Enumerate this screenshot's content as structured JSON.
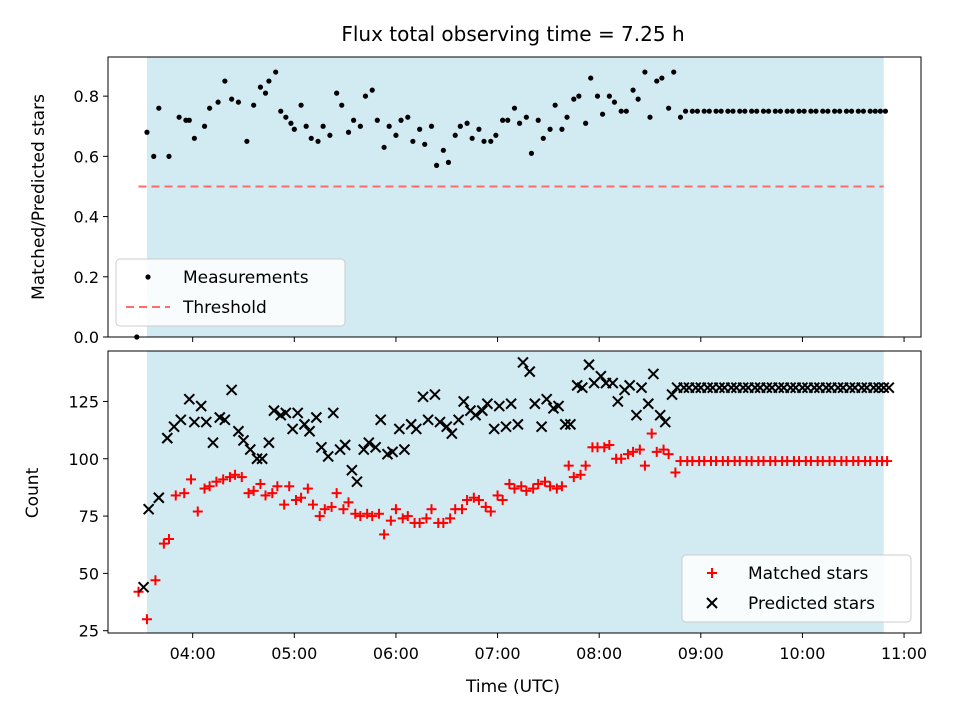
{
  "chart_data": [
    {
      "type": "scatter",
      "title": "Flux total observing time = 7.25 h",
      "xlabel": "",
      "ylabel": "Matched/Predicted stars",
      "ylim": [
        0,
        0.93
      ],
      "xlim": [
        "03:10",
        "11:10"
      ],
      "yticks": [
        "0.0",
        "0.2",
        "0.4",
        "0.6",
        "0.8"
      ],
      "shaded_span": [
        "03:33",
        "10:48"
      ],
      "shade_color": "#add8e6",
      "legend_position": "lower-left",
      "legend": [
        "Measurements",
        "Threshold"
      ],
      "threshold": {
        "name": "Threshold",
        "value": 0.5,
        "x_range": [
          "03:28",
          "10:48"
        ],
        "color": "#ff6b6b"
      },
      "series": [
        {
          "name": "Measurements",
          "marker": "dot",
          "color": "#000000",
          "x": [
            "03:27",
            "03:33",
            "03:37",
            "03:40",
            "03:46",
            "03:52",
            "03:56",
            "03:58",
            "04:01",
            "04:07",
            "04:10",
            "04:15",
            "04:19",
            "04:23",
            "04:27",
            "04:32",
            "04:36",
            "04:40",
            "04:43",
            "04:45",
            "04:49",
            "04:52",
            "04:55",
            "04:58",
            "05:00",
            "05:04",
            "05:07",
            "05:10",
            "05:14",
            "05:17",
            "05:21",
            "05:25",
            "05:28",
            "05:32",
            "05:35",
            "05:39",
            "05:42",
            "05:46",
            "05:49",
            "05:53",
            "05:56",
            "06:00",
            "06:03",
            "06:07",
            "06:10",
            "06:14",
            "06:17",
            "06:21",
            "06:24",
            "06:28",
            "06:31",
            "06:35",
            "06:38",
            "06:42",
            "06:45",
            "06:49",
            "06:52",
            "06:56",
            "06:59",
            "07:03",
            "07:06",
            "07:10",
            "07:13",
            "07:17",
            "07:20",
            "07:24",
            "07:27",
            "07:31",
            "07:34",
            "07:38",
            "07:41",
            "07:45",
            "07:48",
            "07:52",
            "07:55",
            "07:59",
            "08:02",
            "08:06",
            "08:09",
            "08:13",
            "08:16",
            "08:20",
            "08:23",
            "08:27",
            "08:30",
            "08:34",
            "08:37",
            "08:41",
            "08:44",
            "08:48",
            "08:51",
            "08:55",
            "08:58",
            "09:02",
            "09:05",
            "09:09",
            "09:12",
            "09:16",
            "09:19",
            "09:23",
            "09:26",
            "09:30",
            "09:33",
            "09:37",
            "09:40",
            "09:44",
            "09:47",
            "09:51",
            "09:54",
            "09:58",
            "10:01",
            "10:05",
            "10:08",
            "10:12",
            "10:15",
            "10:19",
            "10:22",
            "10:26",
            "10:29",
            "10:33",
            "10:36",
            "10:40",
            "10:43",
            "10:46",
            "10:49"
          ],
          "y": [
            0.0,
            0.68,
            0.6,
            0.76,
            0.6,
            0.73,
            0.72,
            0.72,
            0.66,
            0.7,
            0.76,
            0.78,
            0.85,
            0.79,
            0.78,
            0.65,
            0.77,
            0.83,
            0.81,
            0.85,
            0.88,
            0.75,
            0.73,
            0.71,
            0.69,
            0.77,
            0.7,
            0.66,
            0.65,
            0.7,
            0.67,
            0.81,
            0.77,
            0.68,
            0.72,
            0.7,
            0.8,
            0.82,
            0.72,
            0.63,
            0.7,
            0.67,
            0.72,
            0.73,
            0.65,
            0.69,
            0.64,
            0.7,
            0.57,
            0.62,
            0.58,
            0.67,
            0.7,
            0.71,
            0.66,
            0.69,
            0.65,
            0.65,
            0.67,
            0.72,
            0.72,
            0.76,
            0.71,
            0.73,
            0.61,
            0.72,
            0.66,
            0.69,
            0.77,
            0.69,
            0.73,
            0.79,
            0.8,
            0.71,
            0.86,
            0.8,
            0.74,
            0.8,
            0.78,
            0.75,
            0.75,
            0.82,
            0.79,
            0.88,
            0.73,
            0.85,
            0.86,
            0.76,
            0.88,
            0.73,
            0.75,
            0.75,
            0.75,
            0.75,
            0.75,
            0.75,
            0.75,
            0.75,
            0.75,
            0.75,
            0.75,
            0.75,
            0.75,
            0.75,
            0.75,
            0.75,
            0.75,
            0.75,
            0.75,
            0.75,
            0.75,
            0.75,
            0.75,
            0.75,
            0.75,
            0.75,
            0.75,
            0.75,
            0.75,
            0.75,
            0.75,
            0.75,
            0.75,
            0.75,
            0.75
          ]
        }
      ]
    },
    {
      "type": "scatter",
      "title": "",
      "xlabel": "Time (UTC)",
      "ylabel": "Count",
      "ylim": [
        24,
        147
      ],
      "xlim": [
        "03:10",
        "11:10"
      ],
      "xticks": [
        "04:00",
        "05:00",
        "06:00",
        "07:00",
        "08:00",
        "09:00",
        "10:00",
        "11:00"
      ],
      "yticks": [
        "25",
        "50",
        "75",
        "100",
        "125"
      ],
      "shaded_span": [
        "03:33",
        "10:48"
      ],
      "shade_color": "#add8e6",
      "legend_position": "lower-right",
      "legend": [
        "Matched stars",
        "Predicted stars"
      ],
      "series": [
        {
          "name": "Matched stars",
          "marker": "plus",
          "color": "#ff0000",
          "x": [
            "03:28",
            "03:33",
            "03:38",
            "03:43",
            "03:46",
            "03:50",
            "03:55",
            "03:59",
            "04:03",
            "04:07",
            "04:10",
            "04:14",
            "04:18",
            "04:22",
            "04:25",
            "04:29",
            "04:33",
            "04:36",
            "04:40",
            "04:43",
            "04:47",
            "04:50",
            "04:54",
            "04:57",
            "05:01",
            "05:04",
            "05:08",
            "05:11",
            "05:15",
            "05:18",
            "05:22",
            "05:25",
            "05:29",
            "05:32",
            "05:36",
            "05:39",
            "05:43",
            "05:46",
            "05:50",
            "05:53",
            "05:57",
            "06:00",
            "06:04",
            "06:07",
            "06:11",
            "06:14",
            "06:18",
            "06:21",
            "06:25",
            "06:28",
            "06:32",
            "06:35",
            "06:39",
            "06:42",
            "06:46",
            "06:49",
            "06:53",
            "06:56",
            "07:00",
            "07:03",
            "07:07",
            "07:10",
            "07:14",
            "07:17",
            "07:21",
            "07:24",
            "07:28",
            "07:31",
            "07:35",
            "07:38",
            "07:42",
            "07:45",
            "07:49",
            "07:52",
            "07:56",
            "07:59",
            "08:03",
            "08:06",
            "08:10",
            "08:13",
            "08:17",
            "08:20",
            "08:24",
            "08:27",
            "08:31",
            "08:34",
            "08:38",
            "08:41",
            "08:45",
            "08:48",
            "08:52",
            "08:55",
            "08:59",
            "09:02",
            "09:06",
            "09:09",
            "09:13",
            "09:16",
            "09:20",
            "09:23",
            "09:27",
            "09:30",
            "09:34",
            "09:37",
            "09:41",
            "09:44",
            "09:48",
            "09:51",
            "09:55",
            "09:58",
            "10:02",
            "10:05",
            "10:09",
            "10:12",
            "10:16",
            "10:19",
            "10:23",
            "10:26",
            "10:30",
            "10:33",
            "10:37",
            "10:40",
            "10:44",
            "10:47",
            "10:50"
          ],
          "y": [
            42,
            30,
            47,
            63,
            65,
            84,
            85,
            91,
            77,
            87,
            88,
            90,
            91,
            92,
            93,
            92,
            85,
            86,
            89,
            84,
            85,
            88,
            80,
            88,
            82,
            83,
            87,
            80,
            75,
            78,
            79,
            85,
            78,
            81,
            76,
            75,
            76,
            75,
            76,
            67,
            73,
            78,
            74,
            75,
            72,
            72,
            74,
            78,
            72,
            72,
            74,
            78,
            78,
            82,
            83,
            82,
            79,
            77,
            84,
            82,
            89,
            87,
            88,
            86,
            87,
            89,
            90,
            88,
            87,
            88,
            97,
            92,
            93,
            97,
            105,
            105,
            105,
            106,
            100,
            100,
            102,
            103,
            104,
            97,
            111,
            103,
            104,
            102,
            94,
            99,
            99,
            99,
            99,
            99,
            99,
            99,
            99,
            99,
            99,
            99,
            99,
            99,
            99,
            99,
            99,
            99,
            99,
            99,
            99,
            99,
            99,
            99,
            99,
            99,
            99,
            99,
            99,
            99,
            99,
            99,
            99,
            99,
            99,
            99,
            99
          ]
        },
        {
          "name": "Predicted stars",
          "marker": "x",
          "color": "#000000",
          "x": [
            "03:31",
            "03:34",
            "03:40",
            "03:45",
            "03:49",
            "03:53",
            "03:58",
            "04:01",
            "04:05",
            "04:08",
            "04:12",
            "04:16",
            "04:19",
            "04:23",
            "04:27",
            "04:30",
            "04:34",
            "04:38",
            "04:41",
            "04:45",
            "04:48",
            "04:52",
            "04:55",
            "04:59",
            "05:02",
            "05:06",
            "05:09",
            "05:13",
            "05:16",
            "05:20",
            "05:23",
            "05:27",
            "05:30",
            "05:34",
            "05:37",
            "05:41",
            "05:44",
            "05:48",
            "05:51",
            "05:55",
            "05:58",
            "06:02",
            "06:05",
            "06:09",
            "06:12",
            "06:16",
            "06:19",
            "06:23",
            "06:26",
            "06:30",
            "06:33",
            "06:37",
            "06:40",
            "06:44",
            "06:47",
            "06:51",
            "06:54",
            "06:58",
            "07:01",
            "07:05",
            "07:08",
            "07:12",
            "07:15",
            "07:19",
            "07:22",
            "07:26",
            "07:29",
            "07:33",
            "07:36",
            "07:40",
            "07:43",
            "07:47",
            "07:50",
            "07:54",
            "07:57",
            "08:01",
            "08:04",
            "08:08",
            "08:11",
            "08:15",
            "08:18",
            "08:22",
            "08:25",
            "08:29",
            "08:32",
            "08:36",
            "08:39",
            "08:43",
            "08:46",
            "08:50",
            "08:53",
            "08:57",
            "09:00",
            "09:04",
            "09:07",
            "09:11",
            "09:14",
            "09:18",
            "09:21",
            "09:25",
            "09:28",
            "09:32",
            "09:35",
            "09:39",
            "09:42",
            "09:46",
            "09:49",
            "09:53",
            "09:56",
            "10:00",
            "10:03",
            "10:07",
            "10:10",
            "10:14",
            "10:17",
            "10:21",
            "10:24",
            "10:28",
            "10:31",
            "10:35",
            "10:38",
            "10:42",
            "10:45",
            "10:48",
            "10:51"
          ],
          "y": [
            44,
            78,
            83,
            109,
            114,
            117,
            126,
            116,
            123,
            116,
            107,
            118,
            117,
            130,
            112,
            108,
            104,
            100,
            100,
            107,
            121,
            119,
            120,
            113,
            120,
            115,
            112,
            118,
            105,
            101,
            120,
            104,
            106,
            95,
            90,
            104,
            107,
            105,
            117,
            102,
            103,
            113,
            104,
            115,
            113,
            127,
            117,
            128,
            116,
            114,
            111,
            117,
            125,
            121,
            119,
            121,
            124,
            113,
            123,
            114,
            124,
            115,
            142,
            138,
            124,
            114,
            126,
            122,
            123,
            115,
            115,
            132,
            131,
            141,
            133,
            136,
            133,
            133,
            125,
            130,
            132,
            119,
            131,
            124,
            137,
            119,
            116,
            128,
            131,
            131,
            131,
            131,
            131,
            131,
            131,
            131,
            131,
            131,
            131,
            131,
            131,
            131,
            131,
            131,
            131,
            131,
            131,
            131,
            131,
            131,
            131,
            131,
            131,
            131,
            131,
            131,
            131,
            131,
            131,
            131,
            131,
            131,
            131,
            131,
            131
          ]
        }
      ]
    }
  ]
}
